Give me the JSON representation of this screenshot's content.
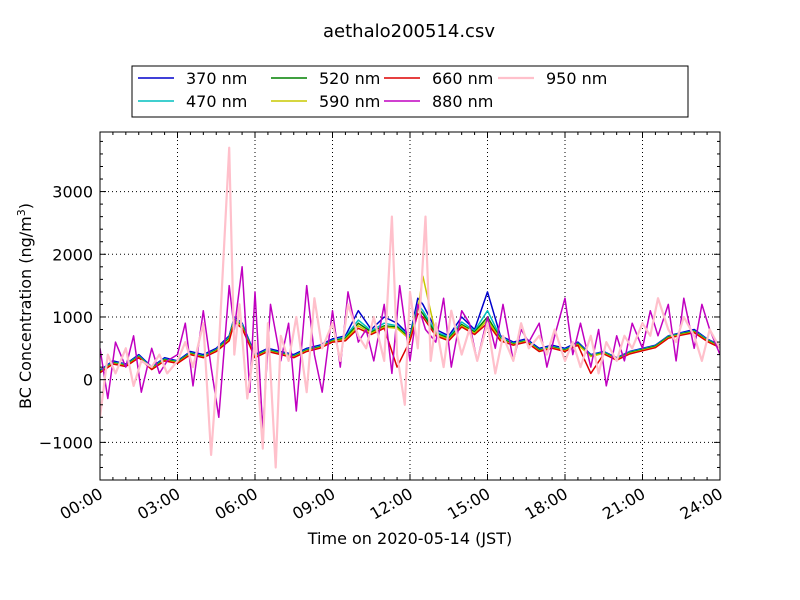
{
  "chart_data": {
    "type": "line",
    "title": "aethalo200514.csv",
    "xlabel": "Time on 2020-05-14 (JST)",
    "ylabel": "BC Concentration (ng/m³)",
    "ylabel_base": "BC Concentration (ng/m",
    "ylabel_sup": "3",
    "ylabel_tail": ")",
    "x_unit": "hour",
    "xlim": [
      0,
      24
    ],
    "ylim": [
      -1600,
      3950
    ],
    "x_ticks": [
      0,
      3,
      6,
      9,
      12,
      15,
      18,
      21,
      24
    ],
    "x_tick_labels": [
      "00:00",
      "03:00",
      "06:00",
      "09:00",
      "12:00",
      "15:00",
      "18:00",
      "21:00",
      "24:00"
    ],
    "y_ticks": [
      -1000,
      0,
      1000,
      2000,
      3000
    ],
    "y_tick_labels": [
      "−1000",
      "0",
      "1000",
      "2000",
      "3000"
    ],
    "grid": true,
    "legend_position": "top-center",
    "legend_columns": 4,
    "series": [
      {
        "name": "370 nm",
        "color": "#0000cc",
        "width": 1.5,
        "x": [
          0,
          0.5,
          1,
          1.5,
          2,
          2.5,
          3,
          3.5,
          4,
          4.5,
          5,
          5.2,
          5.5,
          6,
          6.5,
          7,
          7.5,
          8,
          8.5,
          9,
          9.5,
          10,
          10.5,
          11,
          11.5,
          12,
          12.3,
          12.5,
          13,
          13.5,
          14,
          14.5,
          15,
          15.5,
          16,
          16.5,
          17,
          17.5,
          18,
          18.5,
          19,
          19.5,
          20,
          20.5,
          21,
          21.5,
          22,
          22.5,
          23,
          23.5,
          24
        ],
        "y": [
          150,
          300,
          250,
          400,
          200,
          350,
          300,
          450,
          400,
          500,
          700,
          1000,
          900,
          400,
          500,
          450,
          400,
          500,
          550,
          650,
          700,
          1100,
          800,
          1000,
          900,
          700,
          1300,
          1200,
          800,
          700,
          1000,
          800,
          1400,
          700,
          600,
          650,
          500,
          550,
          500,
          600,
          400,
          450,
          350,
          450,
          500,
          550,
          700,
          750,
          800,
          650,
          550
        ]
      },
      {
        "name": "470 nm",
        "color": "#00bfbf",
        "width": 1.5,
        "x": [
          0,
          0.5,
          1,
          1.5,
          2,
          2.5,
          3,
          3.5,
          4,
          4.5,
          5,
          5.2,
          5.5,
          6,
          6.5,
          7,
          7.5,
          8,
          8.5,
          9,
          9.5,
          10,
          10.5,
          11,
          11.5,
          12,
          12.3,
          12.5,
          13,
          13.5,
          14,
          14.5,
          15,
          15.5,
          16,
          16.5,
          17,
          17.5,
          18,
          18.5,
          19,
          19.5,
          20,
          20.5,
          21,
          21.5,
          22,
          22.5,
          23,
          23.5,
          24
        ],
        "y": [
          140,
          280,
          240,
          380,
          190,
          330,
          290,
          430,
          380,
          480,
          680,
          980,
          880,
          380,
          480,
          430,
          380,
          480,
          530,
          630,
          680,
          950,
          780,
          900,
          860,
          680,
          1200,
          1100,
          760,
          680,
          920,
          780,
          1100,
          680,
          580,
          630,
          480,
          530,
          480,
          580,
          390,
          440,
          340,
          440,
          490,
          540,
          690,
          740,
          780,
          640,
          540
        ]
      },
      {
        "name": "520 nm",
        "color": "#008000",
        "width": 1.5,
        "x": [
          0,
          0.5,
          1,
          1.5,
          2,
          2.5,
          3,
          3.5,
          4,
          4.5,
          5,
          5.2,
          5.5,
          6,
          6.5,
          7,
          7.5,
          8,
          8.5,
          9,
          9.5,
          10,
          10.5,
          11,
          11.5,
          12,
          12.3,
          12.5,
          13,
          13.5,
          14,
          14.5,
          15,
          15.5,
          16,
          16.5,
          17,
          17.5,
          18,
          18.5,
          19,
          19.5,
          20,
          20.5,
          21,
          21.5,
          22,
          22.5,
          23,
          23.5,
          24
        ],
        "y": [
          130,
          270,
          230,
          370,
          180,
          320,
          280,
          420,
          370,
          470,
          660,
          960,
          860,
          370,
          470,
          420,
          370,
          470,
          520,
          620,
          660,
          900,
          760,
          860,
          840,
          660,
          1150,
          1050,
          740,
          660,
          880,
          760,
          1000,
          660,
          570,
          620,
          470,
          520,
          470,
          570,
          380,
          430,
          330,
          430,
          480,
          530,
          680,
          730,
          770,
          630,
          530
        ]
      },
      {
        "name": "590 nm",
        "color": "#c8c800",
        "width": 1.5,
        "x": [
          0,
          0.5,
          1,
          1.5,
          2,
          2.5,
          3,
          3.5,
          4,
          4.5,
          5,
          5.2,
          5.5,
          6,
          6.5,
          7,
          7.5,
          8,
          8.5,
          9,
          9.5,
          10,
          10.5,
          11,
          11.5,
          12,
          12.3,
          12.5,
          13,
          13.5,
          14,
          14.5,
          15,
          15.5,
          16,
          16.5,
          17,
          17.5,
          18,
          18.5,
          19,
          19.5,
          20,
          20.5,
          21,
          21.5,
          22,
          22.5,
          23,
          23.5,
          24
        ],
        "y": [
          120,
          260,
          220,
          360,
          170,
          310,
          270,
          410,
          360,
          460,
          640,
          940,
          840,
          360,
          460,
          410,
          360,
          460,
          510,
          610,
          640,
          860,
          740,
          840,
          820,
          640,
          1100,
          1650,
          720,
          640,
          860,
          740,
          950,
          640,
          560,
          610,
          460,
          510,
          460,
          560,
          370,
          420,
          320,
          420,
          470,
          520,
          670,
          720,
          760,
          620,
          520
        ]
      },
      {
        "name": "660 nm",
        "color": "#dd0000",
        "width": 1.5,
        "x": [
          0,
          0.5,
          1,
          1.5,
          2,
          2.5,
          3,
          3.5,
          4,
          4.5,
          5,
          5.2,
          5.5,
          6,
          6.5,
          7,
          7.5,
          8,
          8.5,
          9,
          9.5,
          10,
          10.5,
          11,
          11.5,
          12,
          12.3,
          12.5,
          13,
          13.5,
          14,
          14.5,
          15,
          15.5,
          16,
          16.5,
          17,
          17.5,
          18,
          18.5,
          19,
          19.5,
          20,
          20.5,
          21,
          21.5,
          22,
          22.5,
          23,
          23.5,
          24
        ],
        "y": [
          110,
          250,
          210,
          350,
          160,
          300,
          260,
          400,
          350,
          450,
          620,
          920,
          820,
          350,
          450,
          400,
          350,
          450,
          500,
          600,
          620,
          820,
          720,
          820,
          200,
          620,
          1050,
          1000,
          700,
          620,
          840,
          720,
          900,
          620,
          550,
          600,
          450,
          500,
          450,
          550,
          100,
          410,
          310,
          410,
          460,
          510,
          660,
          710,
          750,
          610,
          510
        ]
      },
      {
        "name": "880 nm",
        "color": "#c000c0",
        "width": 1.5,
        "x": [
          0,
          0.3,
          0.6,
          1,
          1.3,
          1.6,
          2,
          2.3,
          2.6,
          3,
          3.3,
          3.6,
          4,
          4.3,
          4.6,
          5,
          5.2,
          5.5,
          5.8,
          6,
          6.3,
          6.6,
          7,
          7.3,
          7.6,
          8,
          8.3,
          8.6,
          9,
          9.3,
          9.6,
          10,
          10.3,
          10.6,
          11,
          11.3,
          11.6,
          12,
          12.3,
          12.6,
          13,
          13.3,
          13.6,
          14,
          14.3,
          14.6,
          15,
          15.3,
          15.6,
          16,
          16.3,
          16.6,
          17,
          17.3,
          17.6,
          18,
          18.3,
          18.6,
          19,
          19.3,
          19.6,
          20,
          20.3,
          20.6,
          21,
          21.3,
          21.6,
          22,
          22.3,
          22.6,
          23,
          23.3,
          23.6,
          24
        ],
        "y": [
          500,
          -300,
          600,
          200,
          700,
          -200,
          500,
          100,
          300,
          400,
          900,
          -100,
          1100,
          200,
          -600,
          1500,
          800,
          1800,
          -200,
          1400,
          -800,
          1200,
          300,
          900,
          -500,
          1500,
          400,
          -200,
          1100,
          200,
          1400,
          600,
          800,
          300,
          1200,
          100,
          1500,
          300,
          1200,
          800,
          600,
          1300,
          200,
          1100,
          900,
          300,
          1000,
          500,
          1200,
          300,
          800,
          600,
          900,
          200,
          700,
          1300,
          400,
          900,
          200,
          800,
          -100,
          700,
          300,
          900,
          500,
          1100,
          700,
          1200,
          300,
          1300,
          500,
          1200,
          800,
          400
        ]
      },
      {
        "name": "950 nm",
        "color": "#ffc0cb",
        "width": 2.2,
        "x": [
          0,
          0.3,
          0.6,
          1,
          1.3,
          1.6,
          2,
          2.3,
          2.6,
          3,
          3.3,
          3.6,
          4,
          4.3,
          4.6,
          5,
          5.2,
          5.4,
          5.7,
          6,
          6.3,
          6.5,
          6.8,
          7,
          7.3,
          7.6,
          8,
          8.3,
          8.6,
          9,
          9.3,
          9.6,
          10,
          10.3,
          10.6,
          11,
          11.3,
          11.5,
          11.8,
          12,
          12.3,
          12.6,
          12.8,
          13,
          13.3,
          13.6,
          14,
          14.3,
          14.6,
          15,
          15.3,
          15.6,
          16,
          16.3,
          16.6,
          17,
          17.3,
          17.6,
          18,
          18.3,
          18.6,
          19,
          19.3,
          19.6,
          20,
          20.3,
          20.6,
          21,
          21.3,
          21.6,
          22,
          22.3,
          22.6,
          23,
          23.3,
          23.6,
          24
        ],
        "y": [
          -600,
          400,
          100,
          500,
          -100,
          300,
          200,
          400,
          100,
          300,
          600,
          200,
          900,
          -1200,
          500,
          3700,
          400,
          1200,
          -300,
          600,
          -1100,
          900,
          -1400,
          700,
          300,
          1000,
          -200,
          1300,
          500,
          900,
          300,
          1200,
          700,
          500,
          1000,
          300,
          2600,
          400,
          -400,
          1400,
          500,
          2600,
          300,
          900,
          200,
          1100,
          400,
          800,
          300,
          900,
          100,
          700,
          300,
          900,
          500,
          700,
          400,
          800,
          300,
          600,
          200,
          700,
          100,
          600,
          300,
          700,
          500,
          900,
          700,
          1300,
          800,
          600,
          1000,
          700,
          300,
          800,
          500
        ]
      }
    ]
  }
}
